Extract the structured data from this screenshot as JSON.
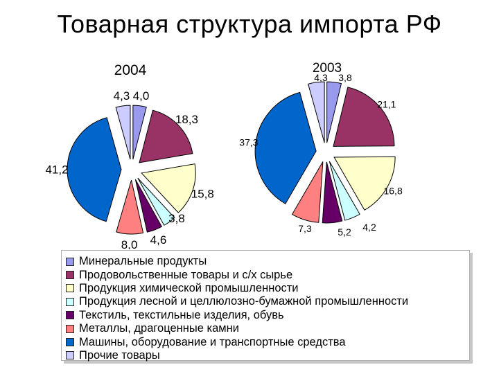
{
  "title": "Товарная структура импорта РФ",
  "categories": [
    "Минеральные продукты",
    "Продовольственные товары и с/х сырье",
    "Продукция химической промышленности",
    "Продукция лесной и целлюлозно-бумажной промышленности",
    "Текстиль, текстильные изделия, обувь",
    "Металлы, драгоценные камни",
    "Машины, оборудование и транспортные средства",
    "Прочие товары"
  ],
  "colors": [
    "#9999ee",
    "#993366",
    "#ffffcc",
    "#ccffff",
    "#660066",
    "#ff8080",
    "#0066cc",
    "#ccccff"
  ],
  "chart_data": [
    {
      "type": "pie",
      "title": "2004",
      "values": [
        4.0,
        18.3,
        15.8,
        3.8,
        4.6,
        8.0,
        41.2,
        4.3
      ],
      "value_labels": [
        "4,0",
        "18,3",
        "15,8",
        "3,8",
        "4,6",
        "8,0",
        "41,2",
        "4,3"
      ]
    },
    {
      "type": "pie",
      "title": "2003",
      "values": [
        3.8,
        21.1,
        16.8,
        4.2,
        5.2,
        7.3,
        37.3,
        4.3
      ],
      "value_labels": [
        "3,8",
        "21,1",
        "16,8",
        "4,2",
        "5,2",
        "7,3",
        "37,3",
        "4,3"
      ]
    }
  ]
}
